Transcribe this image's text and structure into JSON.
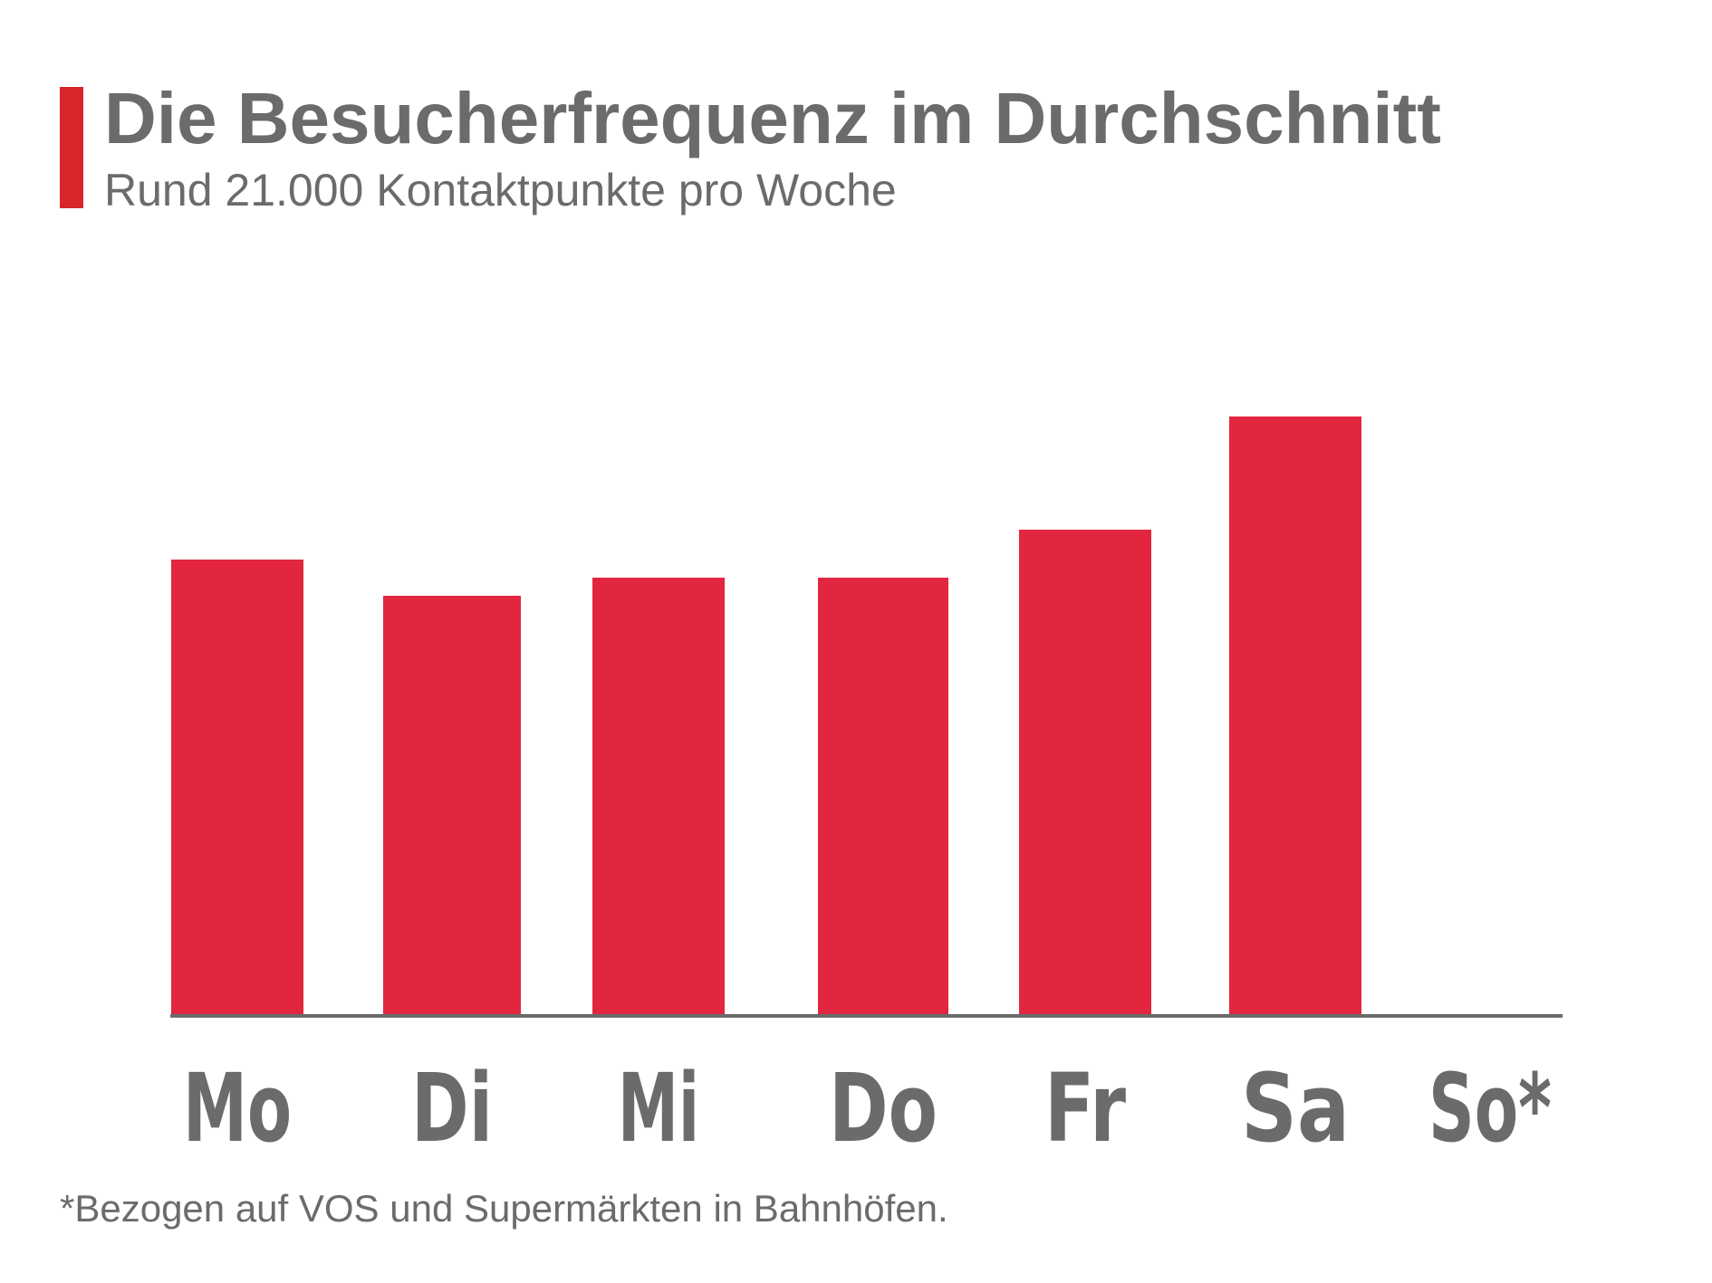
{
  "header": {
    "title": "Die Besucherfrequenz im Durchschnitt",
    "subtitle": "Rund 21.000 Kontaktpunkte pro Woche",
    "accent_color": "#d9262a"
  },
  "footnote": "*Bezogen auf VOS und Supermärkten in Bahnhöfen.",
  "chart_data": {
    "type": "bar",
    "categories": [
      "Mo",
      "Di",
      "Mi",
      "Do",
      "Fr",
      "Sa",
      "So*"
    ],
    "values": [
      76,
      70,
      73,
      73,
      81,
      100,
      0
    ],
    "title": "Die Besucherfrequenz im Durchschnitt",
    "subtitle": "Rund 21.000 Kontaktpunkte pro Woche",
    "xlabel": "",
    "ylabel": "",
    "ylim": [
      0,
      100
    ],
    "grid": false,
    "legend": "none",
    "bar_color": "#e3263f",
    "axis_color": "#6b6b6b",
    "label_color": "#6b6b6b"
  }
}
